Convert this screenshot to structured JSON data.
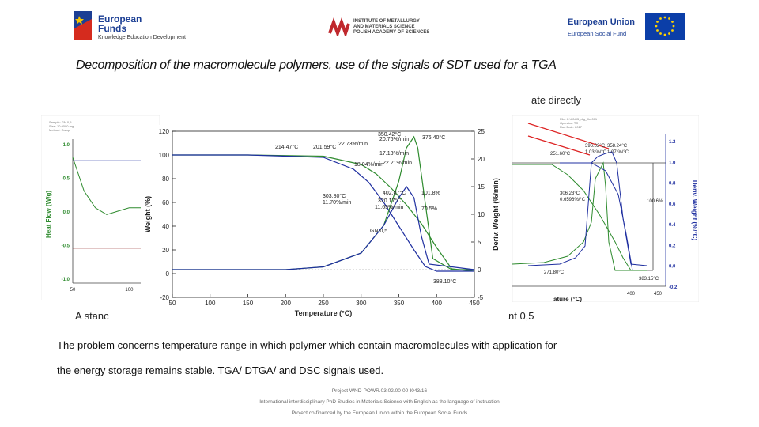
{
  "header": {
    "left_logo_line1": "European",
    "left_logo_line2": "Funds",
    "left_logo_sub": "Knowledge Education Development",
    "mid_logo_line1": "INSTITUTE OF METALLURGY",
    "mid_logo_line2": "AND MATERIALS SCIENCE",
    "mid_logo_line3": "POLISH ACADEMY OF SCIENCES",
    "right_logo_title": "European Union",
    "right_logo_sub": "European Social Fund"
  },
  "slide": {
    "title": "Decomposition of the macromolecule polymers, use of the signals of SDT used for a TGA",
    "partial_right": "ate directly",
    "partial_bottom_left": "A stanc",
    "partial_bottom_right": "nt 0,5",
    "body_line1": "The problem concerns temperature range in which polymer which contain macromolecules with application for",
    "body_line2": "the energy storage remains stable.  TGA/ DTGA/ and DSC signals used."
  },
  "footer": {
    "line1": "Project WND-POWR.03.02.00-00-I043/16",
    "line2": "International interdisciplinary PhD Studies in Materials Science with English as the language of instruction",
    "line3": "Project co-financed by the European Union within the European Social Funds"
  },
  "chart_data": [
    {
      "type": "line",
      "xlabel": "Temperature (°C)",
      "ylabel": "Weight (%)",
      "y2label": "Deriv. Weight (%/min)",
      "xlim": [
        50,
        450
      ],
      "ylim": [
        -20,
        120
      ],
      "y2lim": [
        -5,
        25
      ],
      "xticks": [
        "50",
        "100",
        "150",
        "200",
        "250",
        "300",
        "350",
        "400",
        "450"
      ],
      "yticks": [
        "-20",
        "0",
        "20",
        "40",
        "60",
        "80",
        "100",
        "120"
      ],
      "y2ticks": [
        "-5",
        "0",
        "5",
        "10",
        "15",
        "20",
        "25"
      ],
      "colors": {
        "weight_green": "#2e8b2e",
        "weight_blue": "#1f2fa0",
        "deriv_black": "#111111"
      },
      "series": [
        {
          "axis": "left",
          "color": "#2e8b2e",
          "x": [
            50,
            150,
            250,
            300,
            320,
            340,
            360,
            380,
            400,
            420,
            450
          ],
          "y": [
            100,
            100,
            99,
            92,
            84,
            72,
            58,
            42,
            22,
            4,
            2
          ]
        },
        {
          "axis": "left",
          "color": "#1f2fa0",
          "x": [
            50,
            150,
            250,
            290,
            310,
            330,
            350,
            370,
            385,
            400,
            450
          ],
          "y": [
            100,
            100,
            98,
            88,
            77,
            60,
            40,
            20,
            6,
            2,
            2
          ]
        },
        {
          "axis": "right",
          "color": "#2e8b2e",
          "x": [
            50,
            200,
            250,
            300,
            330,
            350,
            360,
            370,
            375,
            385,
            395,
            420,
            450
          ],
          "y": [
            0,
            0,
            0.5,
            3,
            8,
            16,
            22,
            24,
            22,
            12,
            2,
            0,
            0
          ]
        },
        {
          "axis": "right",
          "color": "#1f2fa0",
          "x": [
            50,
            200,
            250,
            300,
            330,
            350,
            360,
            370,
            380,
            390,
            450
          ],
          "y": [
            0,
            0,
            0.5,
            3,
            8,
            13,
            15,
            13,
            6,
            1,
            0
          ]
        }
      ],
      "annotations": [
        "350.42°C",
        "20.76%/min",
        "376.40°C",
        "214.47°C",
        "201.59°C",
        "22.73%/min",
        "18.04%/min",
        "17.13%/min",
        "22.21%/min",
        "303.80°C",
        "11.70%/min",
        "402.07°C",
        "320.17°C",
        "11.65%/min",
        "101.8%",
        "70.5%",
        "GN 0,5",
        "388.10°C"
      ]
    },
    {
      "type": "line",
      "ylabel": "Heat Flow (W/g)",
      "yticks": [
        "1.0",
        "0.5",
        "0.0",
        "-0.5",
        "-1.0"
      ],
      "xticks": [
        "50",
        "100"
      ],
      "colors": {
        "green": "#2e8b2e",
        "blue": "#1f2fa0",
        "red": "#8b1c1c"
      },
      "series": [
        {
          "color": "#1f2fa0",
          "x": [
            50,
            120
          ],
          "y": [
            0.75,
            0.75
          ]
        },
        {
          "color": "#2e8b2e",
          "x": [
            50,
            60,
            70,
            80,
            90,
            100,
            110,
            120
          ],
          "y": [
            0.8,
            0.3,
            0.05,
            -0.05,
            0.0,
            0.05,
            0.05,
            0.05
          ]
        },
        {
          "color": "#8b1c1c",
          "x": [
            50,
            120
          ],
          "y": [
            -0.55,
            -0.55
          ]
        }
      ]
    },
    {
      "type": "line",
      "xlabel": "ature (°C)",
      "ylabel": "Deriv. Weight (%/°C)",
      "xticks": [
        "400",
        "450"
      ],
      "y2ticks": [
        "1.2",
        "1.0",
        "0.8",
        "0.6",
        "0.4",
        "0.2",
        "0.0",
        "-0.2"
      ],
      "colors": {
        "green": "#2e8b2e",
        "blue": "#1f2fa0"
      },
      "annotations": [
        "396.02°C",
        "1.03 %/°C",
        "358.24°C",
        "1.07 %/°C",
        "251.60°C",
        "306.23°C",
        "0.6596%/°C",
        "100.6%",
        "271.80°C",
        "383.15°C"
      ]
    }
  ]
}
